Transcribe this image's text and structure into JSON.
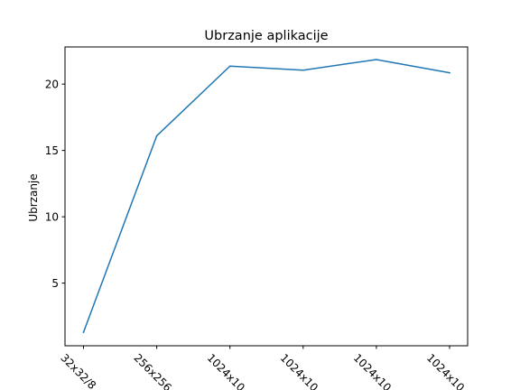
{
  "chart_data": {
    "type": "line",
    "title": "Ubrzanje aplikacije",
    "xlabel": "",
    "ylabel": "Ubrzanje",
    "categories": [
      "32x32/8",
      "256x256",
      "1024x10",
      "1024x10",
      "1024x10",
      "1024x10"
    ],
    "series": [
      {
        "values": [
          1.3,
          16.1,
          21.35,
          21.05,
          21.85,
          20.85
        ],
        "color": "#1f77b4"
      }
    ],
    "yticks": [
      5,
      10,
      15,
      20
    ],
    "ylim": [
      0.28,
      22.8
    ],
    "grid": false,
    "legend": "none"
  }
}
